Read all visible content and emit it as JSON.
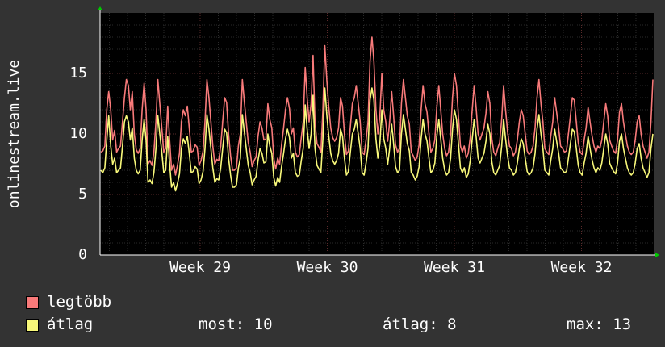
{
  "chart_data": {
    "type": "line",
    "ylabel": "onlinestream.live",
    "ylim": [
      0,
      20
    ],
    "yticks": [
      0,
      5,
      10,
      15
    ],
    "xticks": [
      "Week 29",
      "Week 30",
      "Week 31",
      "Week 32"
    ],
    "grid": true,
    "colors": {
      "background": "#333333",
      "plot_background": "#000000",
      "grid_minor": "#2a2a2a",
      "grid_major": "#5a2a2a",
      "axis_arrow": "#00cc00"
    },
    "series": [
      {
        "name": "legtöbb",
        "color": "#f87a7a",
        "values": [
          8.5,
          8.6,
          9,
          12,
          13.5,
          12,
          9.5,
          10.3,
          8.5,
          8.8,
          9,
          11,
          13,
          14.5,
          14,
          12,
          13.5,
          10,
          8.7,
          8.4,
          8.8,
          12,
          14.2,
          12,
          7.5,
          7.8,
          7.4,
          8.5,
          11,
          14.5,
          12.5,
          10.5,
          8.5,
          8.8,
          12.3,
          9.5,
          7,
          7.5,
          6.6,
          7.4,
          8.4,
          11,
          12,
          11.5,
          12.3,
          10.5,
          8.5,
          8.6,
          9.1,
          8.9,
          7.4,
          7.8,
          8.6,
          11,
          14.5,
          13,
          11,
          9,
          7.5,
          7.9,
          7.8,
          9,
          11,
          13,
          12.6,
          10,
          8.2,
          7,
          7,
          7.2,
          9,
          10,
          14.5,
          12.7,
          11,
          9.3,
          8.5,
          7.3,
          7.8,
          8.1,
          9.8,
          11,
          10.5,
          9.5,
          9.6,
          12.5,
          11.2,
          10.5,
          8,
          7.1,
          8,
          7.5,
          9.1,
          10.5,
          12,
          13,
          12.1,
          10,
          10.5,
          8.5,
          8.1,
          8.3,
          9.7,
          11,
          15.5,
          13,
          11,
          12.5,
          16.5,
          11,
          9.2,
          8.9,
          8.5,
          12,
          17.3,
          14.5,
          12.2,
          10.5,
          9.7,
          9.4,
          9.7,
          10.5,
          13,
          12.3,
          10,
          8.3,
          8.6,
          10.6,
          12.5,
          13,
          14,
          12.5,
          11,
          8.5,
          8.3,
          9.5,
          11,
          16,
          18,
          16,
          12,
          10,
          11.5,
          15,
          12,
          11,
          9.4,
          11,
          13.5,
          11.5,
          9.1,
          8.5,
          8.8,
          12.5,
          14.5,
          13,
          11.5,
          10.8,
          8.5,
          8.2,
          7.8,
          8.1,
          9.1,
          12,
          14,
          12.5,
          11.8,
          10,
          8.5,
          8.8,
          9.5,
          12.2,
          14,
          12,
          10,
          8.8,
          8.2,
          8.5,
          10,
          13,
          15,
          14,
          11.5,
          9,
          8.5,
          9,
          8,
          8.4,
          9.7,
          12,
          14,
          12.2,
          10,
          9.5,
          10,
          10.5,
          11.7,
          13.5,
          12.5,
          9.6,
          8.5,
          8.2,
          8.8,
          9.3,
          11.2,
          14,
          12,
          10.2,
          9,
          8.8,
          8.2,
          8.5,
          9.5,
          11,
          12,
          11.5,
          10,
          8.6,
          8.3,
          8.5,
          9,
          10.5,
          13,
          14.5,
          12.5,
          11,
          8.8,
          8.5,
          8.3,
          9.8,
          11,
          13,
          11.8,
          10.5,
          9,
          8.8,
          8.5,
          8.6,
          10,
          11.5,
          13,
          12.8,
          11,
          9.3,
          8.5,
          8.3,
          9.5,
          10.5,
          12.2,
          11,
          9.9,
          9,
          8.5,
          9,
          8.8,
          9.5,
          11,
          12.5,
          11.5,
          9.5,
          9,
          8.6,
          8.4,
          9.5,
          11.8,
          12.5,
          11,
          10,
          9,
          8.5,
          8.3,
          8.5,
          9.5,
          11,
          11.5,
          10,
          9,
          8.5,
          8,
          8.5,
          11,
          14.5
        ]
      },
      {
        "name": "átlag",
        "color": "#f8f87a",
        "values": [
          7,
          6.8,
          7.2,
          9.5,
          11.5,
          9,
          7.5,
          8,
          6.8,
          7,
          7.2,
          9,
          11,
          11.5,
          11,
          9.5,
          10.5,
          8,
          7,
          6.7,
          7,
          9.5,
          11.2,
          9.5,
          6,
          6.2,
          5.9,
          6.8,
          8.8,
          11.5,
          10,
          8.5,
          6.8,
          7,
          9.8,
          7.5,
          5.6,
          6,
          5.3,
          5.9,
          6.7,
          8.8,
          9.6,
          9.2,
          9.8,
          8.4,
          6.8,
          6.9,
          7.3,
          7.1,
          5.9,
          6.2,
          6.9,
          8.8,
          11.6,
          10.4,
          8.8,
          7.2,
          6,
          6.3,
          6.2,
          7.2,
          8.8,
          10.4,
          10.1,
          8,
          6.6,
          5.6,
          5.6,
          5.8,
          7.2,
          8,
          11.6,
          10.2,
          8.8,
          7.4,
          6.8,
          5.8,
          6.2,
          6.5,
          7.8,
          8.8,
          8.4,
          7.6,
          7.7,
          10,
          9,
          8.4,
          6.4,
          5.7,
          6.4,
          6,
          7.3,
          8.4,
          9.6,
          10.4,
          9.7,
          8,
          8.4,
          6.8,
          6.5,
          6.6,
          7.8,
          8.8,
          12.4,
          10.4,
          8.8,
          10,
          13.2,
          8.8,
          7.4,
          7.1,
          6.8,
          9.6,
          13.8,
          11.6,
          9.8,
          8.4,
          7.8,
          7.5,
          7.8,
          8.4,
          10.4,
          9.8,
          8,
          6.6,
          6.9,
          8.5,
          10,
          10.4,
          11.2,
          10,
          8.8,
          6.8,
          6.6,
          7.6,
          8.8,
          12.8,
          13.8,
          12.8,
          9.6,
          8,
          9.2,
          12,
          9.6,
          8.8,
          7.5,
          8.8,
          10.8,
          9.2,
          7.3,
          6.8,
          7,
          10,
          11.6,
          10.4,
          9.2,
          8.6,
          6.8,
          6.6,
          6.2,
          6.5,
          7.3,
          9.6,
          11.2,
          10,
          9.4,
          8,
          6.8,
          7,
          7.6,
          9.8,
          11.2,
          9.6,
          8,
          7,
          6.6,
          6.8,
          8,
          10.4,
          12,
          11.2,
          9.2,
          7.2,
          6.8,
          7.2,
          6.4,
          6.7,
          7.8,
          9.6,
          11.2,
          9.8,
          8,
          7.6,
          8,
          8.4,
          9.4,
          10.8,
          10,
          7.7,
          6.8,
          6.6,
          7,
          7.4,
          9,
          11.2,
          9.6,
          8.2,
          7.2,
          7,
          6.6,
          6.8,
          7.6,
          8.8,
          9.6,
          9.2,
          8,
          6.9,
          6.6,
          6.8,
          7.2,
          8.4,
          10.4,
          11.6,
          10,
          8.8,
          7,
          6.8,
          6.6,
          7.8,
          8.8,
          10.4,
          9.4,
          8.4,
          7.2,
          7,
          6.8,
          6.9,
          8,
          9.2,
          10.4,
          10.2,
          8.8,
          7.4,
          6.8,
          6.6,
          7.6,
          8.4,
          9.8,
          8.8,
          7.9,
          7.2,
          6.8,
          7.2,
          7,
          7.6,
          8.8,
          10,
          9.2,
          7.6,
          7.2,
          6.9,
          6.7,
          7.6,
          9.4,
          10,
          8.8,
          8,
          7.2,
          6.8,
          6.6,
          6.8,
          7.6,
          8.8,
          9.2,
          8,
          7.2,
          6.8,
          6.4,
          6.8,
          8.8,
          10
        ]
      }
    ],
    "stats": {
      "most_label": "most:",
      "most_value": "10",
      "avg_label": "átlag:",
      "avg_value": "8",
      "max_label": "max:",
      "max_value": "13"
    }
  }
}
